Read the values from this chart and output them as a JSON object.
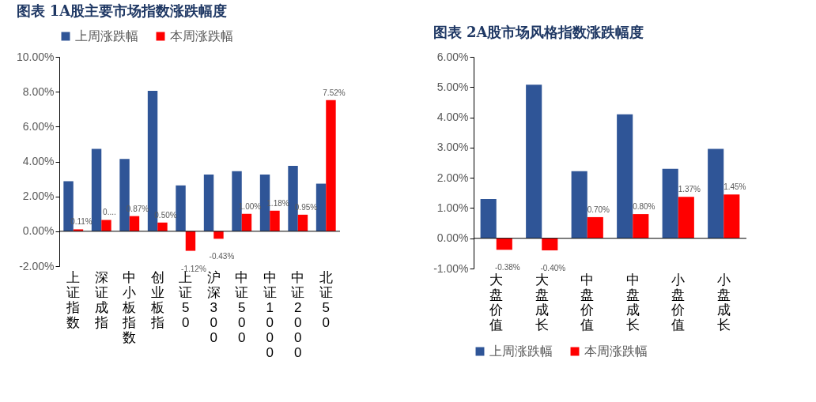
{
  "chart_data": [
    {
      "type": "bar",
      "title": "图表  1A股主要市场指数涨跌幅度",
      "categories": [
        "上证指数",
        "深证成指",
        "中小板指数",
        "创业板指",
        "上证50",
        "沪深300",
        "中证500",
        "中证1000",
        "中证2000",
        "北证50"
      ],
      "series": [
        {
          "name": "上周涨跌幅",
          "color": "#2f5597",
          "values": [
            2.87,
            4.73,
            4.15,
            8.05,
            2.63,
            3.25,
            3.45,
            3.25,
            3.75,
            2.73
          ]
        },
        {
          "name": "本周涨跌幅",
          "color": "#ff0000",
          "values": [
            0.11,
            0.65,
            0.87,
            0.5,
            -1.12,
            -0.43,
            1.0,
            1.18,
            0.95,
            7.52
          ],
          "value_labels": [
            "0.11%",
            "0....",
            "0.87%",
            "0.50%",
            "-1.12%",
            "-0.43%",
            "1.00%",
            "1.18%",
            "0.95%",
            "7.52%"
          ]
        }
      ],
      "ylim": [
        -2,
        10
      ],
      "yticks": [
        {
          "value": -2,
          "label": "-2.00%"
        },
        {
          "value": 0,
          "label": "0.00%"
        },
        {
          "value": 2,
          "label": "2.00%"
        },
        {
          "value": 4,
          "label": "4.00%"
        },
        {
          "value": 6,
          "label": "6.00%"
        },
        {
          "value": 8,
          "label": "8.00%"
        },
        {
          "value": 10,
          "label": "10.00%"
        }
      ],
      "legend": "top"
    },
    {
      "type": "bar",
      "title": "图表  2A股市场风格指数涨跌幅度",
      "categories": [
        "大盘价值",
        "大盘成长",
        "中盘价值",
        "中盘成长",
        "小盘价值",
        "小盘成长"
      ],
      "series": [
        {
          "name": "上周涨跌幅",
          "color": "#2f5597",
          "values": [
            1.3,
            5.08,
            2.22,
            4.1,
            2.3,
            2.96
          ]
        },
        {
          "name": "本周涨跌幅",
          "color": "#ff0000",
          "values": [
            -0.38,
            -0.4,
            0.7,
            0.8,
            1.37,
            1.45
          ],
          "value_labels": [
            "-0.38%",
            "-0.40%",
            "0.70%",
            "0.80%",
            "1.37%",
            "1.45%"
          ]
        }
      ],
      "ylim": [
        -1,
        6
      ],
      "yticks": [
        {
          "value": -1,
          "label": "-1.00%"
        },
        {
          "value": 0,
          "label": "0.00%"
        },
        {
          "value": 1,
          "label": "1.00%"
        },
        {
          "value": 2,
          "label": "2.00%"
        },
        {
          "value": 3,
          "label": "3.00%"
        },
        {
          "value": 4,
          "label": "4.00%"
        },
        {
          "value": 5,
          "label": "5.00%"
        },
        {
          "value": 6,
          "label": "6.00%"
        }
      ],
      "legend": "bottom"
    }
  ]
}
